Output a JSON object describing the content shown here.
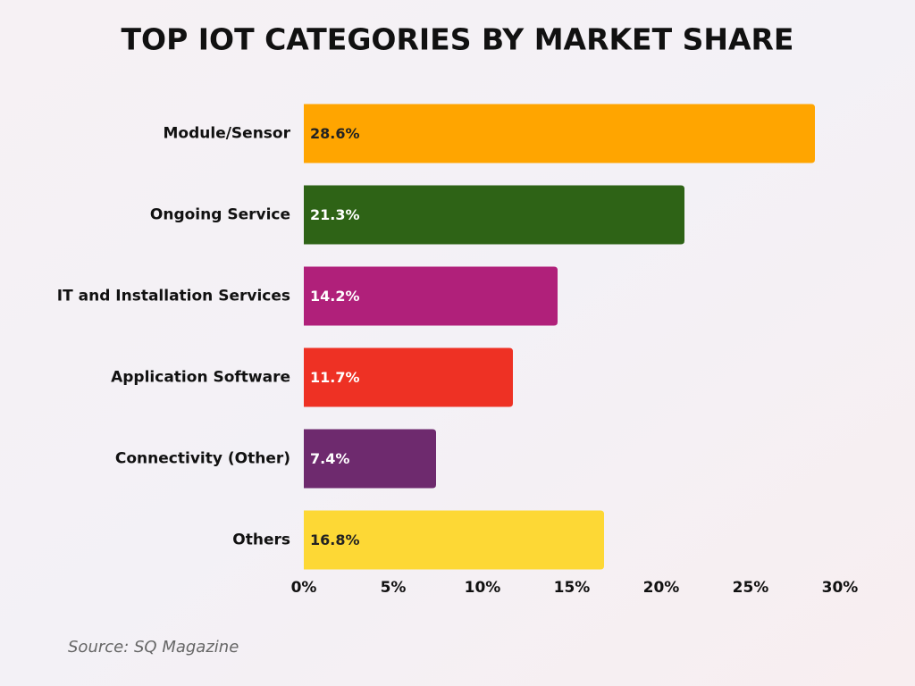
{
  "chart_data": {
    "type": "bar",
    "orientation": "horizontal",
    "title": "TOP IOT CATEGORIES BY MARKET SHARE",
    "categories": [
      "Module/Sensor",
      "Ongoing Service",
      "IT and Installation Services",
      "Application Software",
      "Connectivity (Other)",
      "Others"
    ],
    "values": [
      28.6,
      21.3,
      14.2,
      11.7,
      7.4,
      16.8
    ],
    "value_labels": [
      "28.6%",
      "21.3%",
      "14.2%",
      "11.7%",
      "7.4%",
      "16.8%"
    ],
    "colors": [
      "#FFA500",
      "#2E6316",
      "#B0207A",
      "#EE3124",
      "#6E2A6E",
      "#FDD835"
    ],
    "xlim": [
      0,
      30
    ],
    "xticks": [
      {
        "value": 0,
        "label": "0%"
      },
      {
        "value": 5,
        "label": "5%"
      },
      {
        "value": 10,
        "label": "10%"
      },
      {
        "value": 15,
        "label": "15%"
      },
      {
        "value": 20,
        "label": "20%"
      },
      {
        "value": 25,
        "label": "25%"
      },
      {
        "value": 30,
        "label": "30%"
      }
    ],
    "grid": false,
    "source": "Source: SQ Magazine"
  }
}
